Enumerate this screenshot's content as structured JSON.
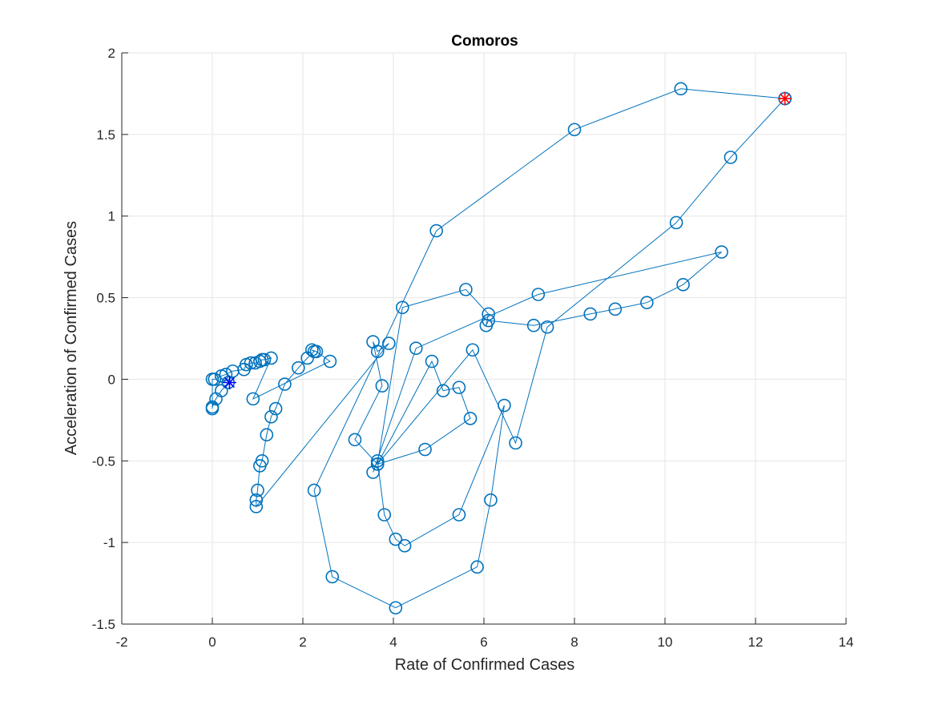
{
  "chart_data": {
    "type": "line",
    "title": "Comoros",
    "xlabel": "Rate of Confirmed Cases",
    "ylabel": "Acceleration of Confirmed Cases",
    "xlim": [
      -2,
      14
    ],
    "ylim": [
      -1.5,
      2
    ],
    "xticks": [
      -2,
      0,
      2,
      4,
      6,
      8,
      10,
      12,
      14
    ],
    "yticks": [
      -1.5,
      -1,
      -0.5,
      0,
      0.5,
      1,
      1.5,
      2
    ],
    "xtick_labels": [
      "-2",
      "0",
      "2",
      "4",
      "6",
      "8",
      "10",
      "12",
      "14"
    ],
    "ytick_labels": [
      "-1.5",
      "-1",
      "-0.5",
      "0",
      "0.5",
      "1",
      "1.5",
      "2"
    ],
    "grid": true,
    "colors": {
      "series": "#0072BD",
      "start_marker": "#0000FF",
      "end_marker": "#FF0000",
      "axes": "#262626",
      "grid": "#E6E6E6"
    },
    "series": [
      {
        "marker": "circle",
        "x": [
          0.35,
          0.2,
          0.08,
          0.0,
          0.0,
          0.0,
          0.05,
          0.2,
          0.3,
          0.45,
          0.7,
          0.75,
          0.85,
          0.95,
          1.05,
          1.1,
          1.15,
          1.3,
          0.9,
          2.6,
          2.3,
          2.2,
          2.25,
          2.1,
          1.9,
          1.6,
          1.4,
          1.3,
          1.2,
          1.1,
          1.05,
          1.0,
          0.97,
          0.97,
          3.9,
          3.65,
          3.55,
          3.75,
          3.15,
          3.65,
          4.2,
          5.6,
          6.1,
          6.05,
          6.1,
          7.1,
          8.35,
          8.9,
          9.6,
          10.4,
          11.25,
          7.2,
          4.5,
          3.55,
          3.65,
          3.8,
          4.05,
          4.25,
          5.45,
          6.45,
          6.15,
          5.85,
          4.05,
          2.65,
          2.25,
          4.95,
          8.0,
          10.35,
          12.65
        ],
        "y": [
          -0.02,
          -0.07,
          -0.12,
          -0.17,
          -0.18,
          0.0,
          0.0,
          0.02,
          0.03,
          0.05,
          0.06,
          0.09,
          0.1,
          0.1,
          0.11,
          0.12,
          0.12,
          0.13,
          -0.12,
          0.11,
          0.17,
          0.18,
          0.17,
          0.13,
          0.07,
          -0.03,
          -0.18,
          -0.23,
          -0.34,
          -0.5,
          -0.53,
          -0.68,
          -0.74,
          -0.78,
          0.22,
          0.17,
          0.23,
          -0.04,
          -0.37,
          -0.52,
          0.44,
          0.55,
          0.4,
          0.33,
          0.36,
          0.33,
          0.4,
          0.43,
          0.47,
          0.58,
          0.78,
          0.52,
          0.19,
          -0.57,
          -0.5,
          -0.83,
          -0.98,
          -1.02,
          -0.83,
          -0.16,
          -0.74,
          -1.15,
          -1.4,
          -1.21,
          -0.68,
          0.91,
          1.53,
          1.78,
          1.72
        ]
      },
      {
        "marker": "circle",
        "x": [
          3.65,
          4.7,
          5.7,
          5.45,
          5.1,
          4.85,
          3.65,
          5.75,
          6.7,
          7.4,
          10.25,
          11.45,
          12.65
        ],
        "y": [
          -0.52,
          -0.43,
          -0.24,
          -0.05,
          -0.07,
          0.11,
          -0.52,
          0.18,
          -0.39,
          0.32,
          0.96,
          1.36,
          1.72
        ]
      }
    ],
    "start_point": {
      "x": 0.38,
      "y": -0.02,
      "marker": "asterisk"
    },
    "end_point": {
      "x": 12.65,
      "y": 1.72,
      "marker": "asterisk"
    }
  }
}
